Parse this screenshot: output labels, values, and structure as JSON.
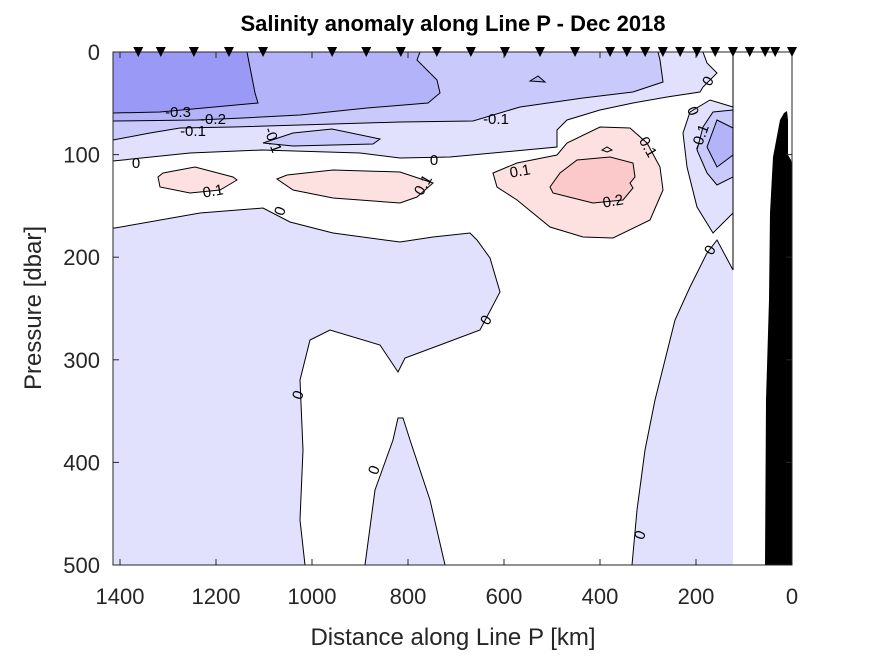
{
  "chart_data": {
    "type": "contour",
    "title": "Salinity anomaly along Line P - Dec 2018",
    "xlabel": "Distance along Line P [km]",
    "ylabel": "Pressure [dbar]",
    "xlim": [
      1415,
      0
    ],
    "ylim": [
      0,
      500
    ],
    "x_direction": "reversed",
    "y_direction": "reversed",
    "x_ticks": [
      1400,
      1200,
      1000,
      800,
      600,
      400,
      200,
      0
    ],
    "x_tick_labels": [
      "1400",
      "1200",
      "1000",
      "800",
      "600",
      "400",
      "200",
      "0"
    ],
    "y_ticks": [
      0,
      100,
      200,
      300,
      400,
      500
    ],
    "y_tick_labels": [
      "0",
      "100",
      "200",
      "300",
      "400",
      "500"
    ],
    "contour_levels": [
      -0.3,
      -0.2,
      -0.1,
      0,
      0.1,
      0.2
    ],
    "level_colors": {
      "below_-0.3": "#9a9af6",
      "-0.3_to_-0.2": "#b3b3f9",
      "-0.2_to_-0.1": "#c9c9fb",
      "-0.1_to_0": "#e1e1fd",
      "0_to_0.1": "#ffffff",
      "0.1_to_0.2": "#fde1e1",
      "above_0.2": "#fbc9c9"
    },
    "station_km": [
      1362,
      1315,
      1246,
      1173,
      1102,
      958,
      887,
      815,
      740,
      669,
      598,
      525,
      452,
      379,
      344,
      306,
      269,
      233,
      198,
      160,
      123,
      88,
      56,
      35,
      0
    ],
    "contour_labels": [
      "-0.3",
      "-0.2",
      "-0.1",
      "-0.1",
      "0",
      "0.1",
      "0.1",
      "0",
      "0",
      "-0.1",
      "0.1",
      "0.1",
      "0.2",
      "0",
      "0",
      "-0.1",
      "0",
      "0",
      "0",
      "0",
      "0"
    ],
    "bathymetry_color": "#000000"
  }
}
